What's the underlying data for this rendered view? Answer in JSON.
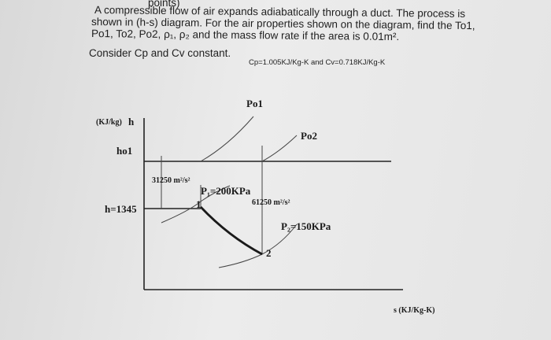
{
  "question": {
    "header_fragment": "points)",
    "lines": [
      "A compressible flow of air expands adiabatically through a duct. The process is",
      "shown in (h-s) diagram. For the air properties shown on the diagram, find the To1,",
      "Po1, To2, Po2, ρ₁, ρ₂ and the mass flow rate if the area is 0.01m².",
      "Consider Cp and Cv constant."
    ],
    "constants": "Cp=1.005KJ/Kg-K and Cv=0.718KJ/Kg-K"
  },
  "diagram": {
    "y_axis_unit": "(KJ/kg)",
    "y_axis_label": "h",
    "x_axis_label": "s (KJ/Kg-K)",
    "ho1": "ho1",
    "h1": "h=1345",
    "po1": "Po1",
    "po2": "Po2",
    "ke1": "31250 m²/s²",
    "ke2": "61250 m²/s²",
    "p1": "P₁=200KPa",
    "p2": "P₂=150KPa",
    "state1": "1",
    "state2": "2"
  }
}
